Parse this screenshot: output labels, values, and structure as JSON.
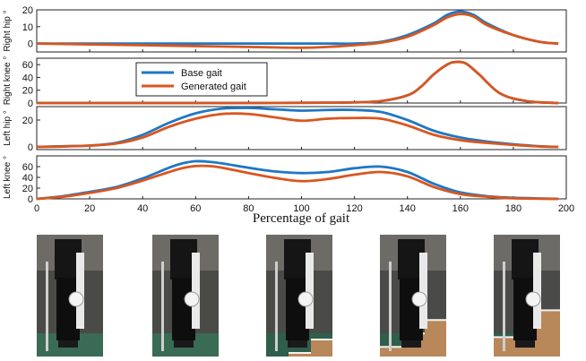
{
  "figure": {
    "xlabel": "Percentage of gait",
    "x_ticks": [
      "0",
      "20",
      "40",
      "60",
      "80",
      "100",
      "120",
      "140",
      "160",
      "180",
      "200"
    ]
  },
  "colors": {
    "base": "#1f77c4",
    "generated": "#d9561f"
  },
  "legend": {
    "placement": "upper-left of second panel",
    "items": [
      "Base gait",
      "Generated gait"
    ]
  },
  "chart_data": [
    {
      "type": "line",
      "ylabel": "Right hip °",
      "xlim": [
        0,
        200
      ],
      "ylim": [
        -5,
        20
      ],
      "yticks": [
        0,
        10,
        20
      ],
      "series": [
        {
          "name": "Base gait",
          "x": [
            0,
            20,
            40,
            60,
            80,
            100,
            110,
            120,
            130,
            140,
            150,
            155,
            160,
            165,
            170,
            180,
            190,
            197
          ],
          "y": [
            0,
            0,
            0,
            0,
            0,
            0,
            0,
            0,
            1,
            5,
            12,
            17,
            19,
            17,
            12,
            5,
            1,
            0
          ]
        },
        {
          "name": "Generated gait",
          "x": [
            0,
            20,
            40,
            60,
            80,
            100,
            110,
            120,
            130,
            140,
            150,
            155,
            160,
            165,
            170,
            180,
            190,
            197
          ],
          "y": [
            0,
            -0.5,
            -1,
            -1.5,
            -2,
            -2.5,
            -2,
            -1,
            0.5,
            4,
            11,
            15.5,
            17.5,
            16,
            11,
            5,
            1,
            0
          ]
        }
      ]
    },
    {
      "type": "line",
      "ylabel": "Right knee °",
      "xlim": [
        0,
        200
      ],
      "ylim": [
        0,
        70
      ],
      "yticks": [
        0,
        20,
        40,
        60
      ],
      "series": [
        {
          "name": "Base gait",
          "x": [
            0,
            40,
            80,
            110,
            120,
            130,
            140,
            145,
            150,
            155,
            158,
            162,
            167,
            175,
            185,
            197
          ],
          "y": [
            0,
            0,
            0,
            0.5,
            1,
            3,
            12,
            25,
            45,
            60,
            64,
            62,
            45,
            15,
            3,
            0
          ]
        },
        {
          "name": "Generated gait",
          "x": [
            0,
            40,
            80,
            110,
            120,
            130,
            140,
            145,
            150,
            155,
            158,
            162,
            167,
            175,
            185,
            197
          ],
          "y": [
            0,
            0,
            0,
            0.5,
            1,
            3,
            12,
            25,
            45,
            60,
            64,
            62,
            45,
            15,
            3,
            0
          ]
        }
      ]
    },
    {
      "type": "line",
      "ylabel": "Left hip °",
      "xlim": [
        0,
        200
      ],
      "ylim": [
        -2,
        30
      ],
      "yticks": [
        0,
        20
      ],
      "series": [
        {
          "name": "Base gait",
          "x": [
            0,
            10,
            20,
            30,
            40,
            50,
            60,
            70,
            80,
            90,
            100,
            110,
            120,
            130,
            140,
            150,
            160,
            170,
            180,
            190,
            197
          ],
          "y": [
            0,
            0.5,
            1,
            3,
            9,
            18,
            25,
            28.5,
            29,
            28,
            27,
            27.5,
            27.5,
            26,
            20,
            12,
            7,
            4,
            2,
            0.5,
            0
          ]
        },
        {
          "name": "Generated gait",
          "x": [
            0,
            10,
            20,
            30,
            40,
            50,
            60,
            70,
            80,
            90,
            100,
            110,
            120,
            130,
            140,
            150,
            160,
            170,
            180,
            190,
            197
          ],
          "y": [
            0,
            0.3,
            1,
            2.5,
            7,
            15,
            21,
            24.5,
            24.5,
            22,
            19.5,
            21,
            21.5,
            21,
            16,
            9,
            5,
            3,
            1.5,
            0.3,
            0
          ]
        }
      ]
    },
    {
      "type": "line",
      "ylabel": "Left knee °",
      "xlim": [
        0,
        200
      ],
      "ylim": [
        0,
        80
      ],
      "yticks": [
        0,
        20,
        40,
        60
      ],
      "series": [
        {
          "name": "Base gait",
          "x": [
            0,
            10,
            20,
            30,
            40,
            50,
            55,
            60,
            65,
            70,
            80,
            90,
            100,
            110,
            120,
            130,
            140,
            150,
            160,
            170,
            180,
            197
          ],
          "y": [
            0,
            5,
            13,
            22,
            38,
            58,
            66,
            70,
            69,
            66,
            58,
            51,
            48,
            50,
            57,
            60,
            50,
            28,
            12,
            5,
            2,
            0
          ]
        },
        {
          "name": "Generated gait",
          "x": [
            0,
            10,
            20,
            30,
            40,
            50,
            55,
            60,
            65,
            70,
            80,
            90,
            100,
            110,
            120,
            130,
            140,
            150,
            160,
            170,
            180,
            197
          ],
          "y": [
            0,
            4,
            11,
            20,
            34,
            50,
            57,
            61,
            61,
            58,
            48,
            39,
            33,
            37,
            45,
            50,
            42,
            22,
            9,
            4,
            1,
            0
          ]
        }
      ]
    }
  ]
}
